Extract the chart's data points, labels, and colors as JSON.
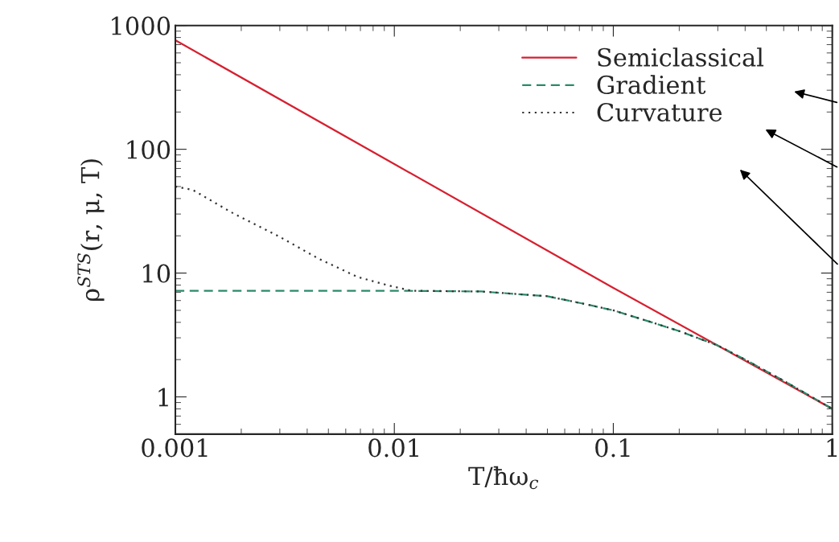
{
  "chart_data": {
    "type": "line",
    "xlabel": "T/ħω$_{c}$",
    "ylabel": "ρ$^{STS}$(r, μ, T)",
    "log": "xy",
    "xlim": [
      0.001,
      1
    ],
    "xticks": [
      0.001,
      0.01,
      0.1,
      1
    ],
    "ylim": [
      0.5,
      1000
    ],
    "yticks": [
      1,
      10,
      100,
      1000
    ],
    "legend": "top right",
    "grid": false,
    "series": [
      {
        "name": "Semiclassical",
        "color": "#d62030",
        "line_style": "solid",
        "x": [
          0.001,
          0.01,
          0.1,
          1
        ],
        "values": [
          760,
          76,
          7.6,
          0.8
        ]
      },
      {
        "name": "Gradient",
        "color": "#2a8a6a",
        "line_style": "dashed",
        "x": [
          0.001,
          0.01,
          0.025,
          0.05,
          0.075,
          0.1,
          0.15,
          0.2,
          0.3,
          0.4,
          0.6,
          1
        ],
        "values": [
          7.2,
          7.2,
          7.1,
          6.5,
          5.6,
          5.0,
          4.0,
          3.4,
          2.6,
          2.0,
          1.35,
          0.8
        ]
      },
      {
        "name": "Curvature",
        "color": "#333333",
        "line_style": "dotted",
        "x": [
          0.001,
          0.0012,
          0.0018,
          0.003,
          0.0045,
          0.0068,
          0.0095,
          0.012,
          0.025,
          0.05,
          0.075,
          0.1,
          0.15,
          0.2,
          0.3,
          0.4,
          0.6,
          1
        ],
        "values": [
          50,
          47,
          31,
          19.6,
          13.1,
          9.3,
          7.9,
          7.2,
          7.1,
          6.5,
          5.6,
          5.0,
          4.0,
          3.4,
          2.6,
          2.0,
          1.35,
          0.8
        ]
      }
    ]
  }
}
